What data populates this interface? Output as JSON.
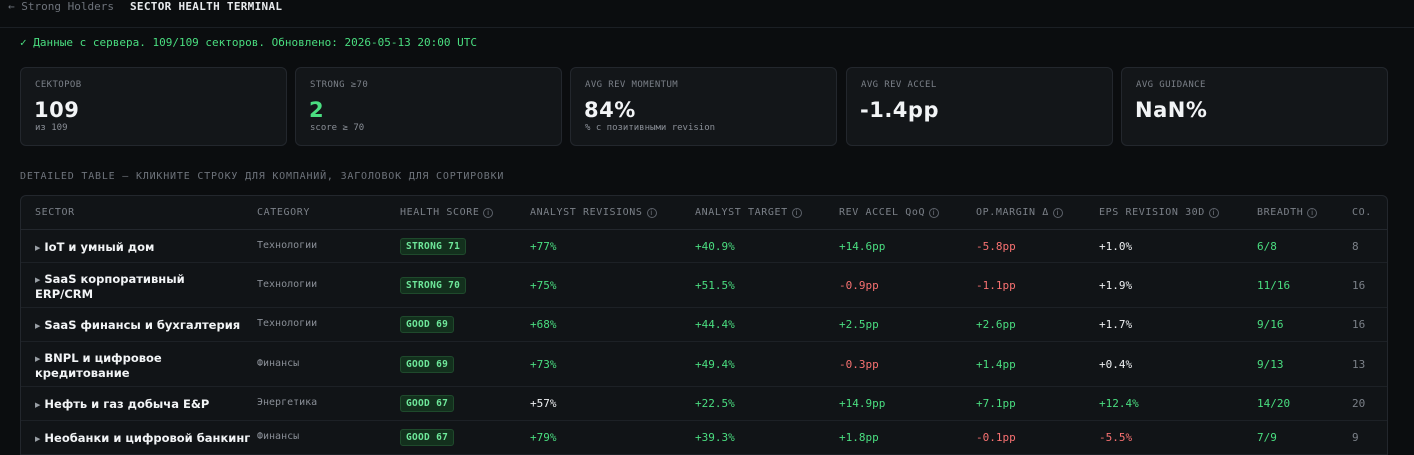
{
  "header": {
    "back_label": "← Strong Holders",
    "title": "SECTOR HEALTH TERMINAL"
  },
  "status": "✓ Данные с сервера. 109/109 секторов. Обновлено: 2026-05-13 20:00 UTC",
  "cards": [
    {
      "label": "СЕКТОРОВ",
      "value": "109",
      "sub": "из 109"
    },
    {
      "label": "STRONG ≥70",
      "value": "2",
      "sub": "score ≥ 70"
    },
    {
      "label": "AVG REV MOMENTUM",
      "value": "84%",
      "sub": "% с позитивными revision"
    },
    {
      "label": "AVG REV ACCEL",
      "value": "-1.4pp",
      "sub": ""
    },
    {
      "label": "AVG GUIDANCE",
      "value": "NaN%",
      "sub": ""
    }
  ],
  "section_label": "DETAILED TABLE — КЛИКНИТЕ СТРОКУ ДЛЯ КОМПАНИЙ, ЗАГОЛОВОК ДЛЯ СОРТИРОВКИ",
  "table": {
    "columns": {
      "sector": "SECTOR",
      "category": "CATEGORY",
      "health": "HEALTH SCORE",
      "revisions": "ANALYST REVISIONS",
      "target": "ANALYST TARGET",
      "accel": "REV ACCEL QoQ",
      "opmargin": "OP.MARGIN Δ",
      "eps": "EPS REVISION 30D",
      "breadth": "BREADTH",
      "co": "CO."
    },
    "info_icon": "ⓘ",
    "expand_icon": "▶",
    "rows": [
      {
        "sector": "IoT и умный дом",
        "sector2": "",
        "category": "Технологии",
        "health": "STRONG 71",
        "revisions": "+77%",
        "target": "+40.9%",
        "accel": "+14.6pp",
        "opmargin": "-5.8pp",
        "eps": "+1.0%",
        "breadth": "6/8",
        "co": "8"
      },
      {
        "sector": "SaaS корпоративный",
        "sector2": "ERP/CRM",
        "category": "Технологии",
        "health": "STRONG 70",
        "revisions": "+75%",
        "target": "+51.5%",
        "accel": "-0.9pp",
        "opmargin": "-1.1pp",
        "eps": "+1.9%",
        "breadth": "11/16",
        "co": "16"
      },
      {
        "sector": "SaaS финансы и бухгалтерия",
        "sector2": "",
        "category": "Технологии",
        "health": "GOOD 69",
        "revisions": "+68%",
        "target": "+44.4%",
        "accel": "+2.5pp",
        "opmargin": "+2.6pp",
        "eps": "+1.7%",
        "breadth": "9/16",
        "co": "16"
      },
      {
        "sector": "BNPL и цифровое",
        "sector2": "кредитование",
        "category": "Финансы",
        "health": "GOOD 69",
        "revisions": "+73%",
        "target": "+49.4%",
        "accel": "-0.3pp",
        "opmargin": "+1.4pp",
        "eps": "+0.4%",
        "breadth": "9/13",
        "co": "13"
      },
      {
        "sector": "Нефть и газ добыча E&P",
        "sector2": "",
        "category": "Энергетика",
        "health": "GOOD 67",
        "revisions": "+57%",
        "target": "+22.5%",
        "accel": "+14.9pp",
        "opmargin": "+7.1pp",
        "eps": "+12.4%",
        "breadth": "14/20",
        "co": "20"
      },
      {
        "sector": "Необанки и цифровой банкинг",
        "sector2": "",
        "category": "Финансы",
        "health": "GOOD 67",
        "revisions": "+79%",
        "target": "+39.3%",
        "accel": "+1.8pp",
        "opmargin": "-0.1pp",
        "eps": "-5.5%",
        "breadth": "7/9",
        "co": "9"
      }
    ]
  },
  "colors": {
    "background": "#0b0d0f",
    "positive": "#4ade80",
    "negative": "#f87171",
    "badge_bg": "#13301d"
  }
}
